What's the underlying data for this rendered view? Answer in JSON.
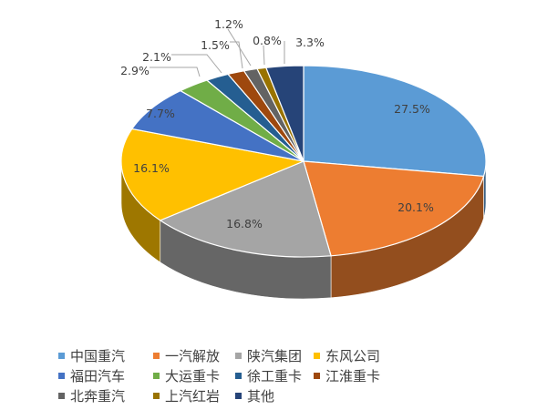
{
  "chart_data": {
    "type": "pie",
    "style": "3d",
    "title": "",
    "legend_position": "bottom",
    "categories": [
      "中国重汽",
      "一汽解放",
      "陕汽集团",
      "东风公司",
      "福田汽车",
      "大运重卡",
      "徐工重卡",
      "江淮重卡",
      "北奔重汽",
      "上汽红岩",
      "其他"
    ],
    "values": [
      27.5,
      20.1,
      16.8,
      16.1,
      7.7,
      2.9,
      2.1,
      1.5,
      1.2,
      0.8,
      3.3
    ],
    "labels": [
      "27.5%",
      "20.1%",
      "16.8%",
      "16.1%",
      "7.7%",
      "2.9%",
      "2.1%",
      "1.5%",
      "1.2%",
      "0.8%",
      "3.3%"
    ],
    "colors": [
      "#5B9BD5",
      "#ED7D31",
      "#A5A5A5",
      "#FFC000",
      "#4472C4",
      "#70AD47",
      "#255E91",
      "#9E480E",
      "#636363",
      "#997300",
      "#264478"
    ]
  }
}
